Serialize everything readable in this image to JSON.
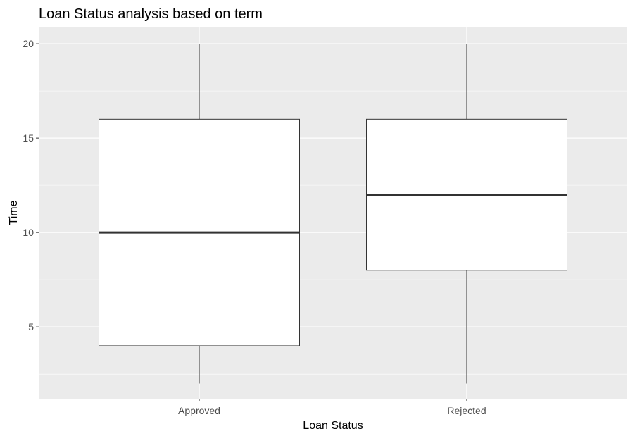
{
  "chart_data": {
    "type": "boxplot",
    "title": "Loan Status analysis based on term",
    "xlabel": "Loan Status",
    "ylabel": "Time",
    "categories": [
      "Approved",
      "Rejected"
    ],
    "boxes": [
      {
        "category": "Approved",
        "whisker_low": 2,
        "q1": 4,
        "median": 10,
        "q3": 16,
        "whisker_high": 20
      },
      {
        "category": "Rejected",
        "whisker_low": 2,
        "q1": 8,
        "median": 12,
        "q3": 16,
        "whisker_high": 20
      }
    ],
    "ylim": [
      1.2,
      20.9
    ],
    "yticks": [
      5,
      10,
      15,
      20
    ],
    "yminor": [
      2.5,
      7.5,
      12.5,
      17.5
    ],
    "grid": true,
    "colors": {
      "panel": "#ebebeb",
      "grid": "#ffffff",
      "box_fill": "#ffffff",
      "box_line": "#333333",
      "tick_text": "#4d4d4d"
    }
  }
}
